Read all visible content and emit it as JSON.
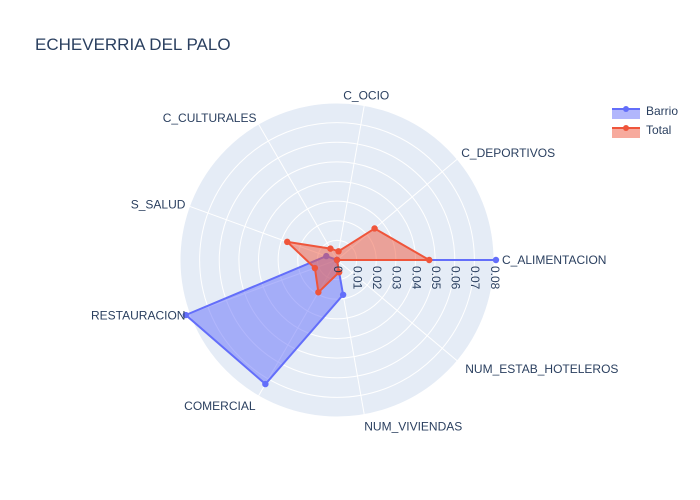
{
  "chart_data": {
    "type": "radar",
    "title": "ECHEVERRIA DEL PALO",
    "categories": [
      "C_ALIMENTACION",
      "C_DEPORTIVOS",
      "C_OCIO",
      "C_CULTURALES",
      "S_SALUD",
      "RESTAURACION",
      "COMERCIAL",
      "NUM_VIVIENDAS",
      "NUM_ESTAB_HOTELEROS"
    ],
    "radial_range": [
      0,
      0.08
    ],
    "radial_ticks": [
      0,
      0.01,
      0.02,
      0.03,
      0.04,
      0.05,
      0.06,
      0.07,
      0.08
    ],
    "grid": true,
    "legend_position": "top-right",
    "series": [
      {
        "name": "Barrio",
        "color": "#636efa",
        "values": [
          0.081,
          0.0,
          0.0,
          0.0,
          0.0058,
          0.082,
          0.073,
          0.018,
          0.0
        ]
      },
      {
        "name": "Total",
        "color": "#ef553b",
        "values": [
          0.047,
          0.025,
          0.0045,
          0.0067,
          0.027,
          0.012,
          0.019,
          0.0063,
          0.0
        ]
      }
    ]
  }
}
